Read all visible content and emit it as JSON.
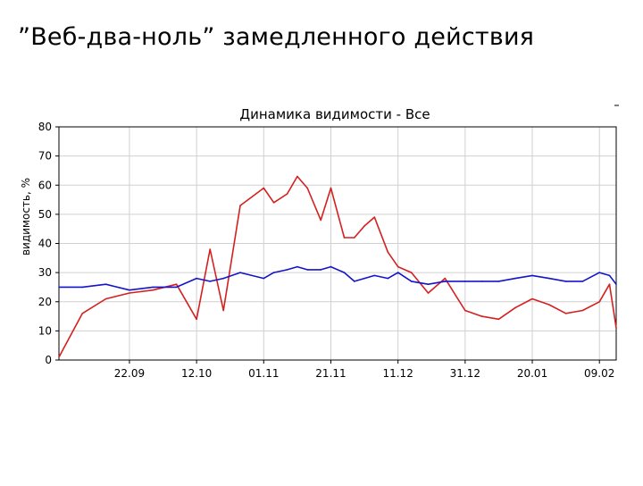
{
  "slide": {
    "title": "”Веб-два-ноль” замедленного действия"
  },
  "colors": {
    "series_red": "#d42020",
    "series_blue": "#1414c8",
    "grid": "#d0d0d0",
    "axis": "#000000"
  },
  "chart_data": {
    "type": "line",
    "title": "Динамика видимости - Все",
    "xlabel": "",
    "ylabel": "видимость, %",
    "ylim": [
      0,
      80
    ],
    "yticks": [
      "0",
      "10",
      "20",
      "30",
      "40",
      "50",
      "60",
      "70",
      "80"
    ],
    "xticks": [
      "22.09",
      "12.10",
      "01.11",
      "21.11",
      "11.12",
      "31.12",
      "20.01",
      "09.02"
    ],
    "grid": true,
    "legend": "none",
    "x": [
      "01.09",
      "08.09",
      "15.09",
      "22.09",
      "29.09",
      "06.10",
      "12.10",
      "16.10",
      "20.10",
      "25.10",
      "01.11",
      "04.11",
      "08.11",
      "11.11",
      "14.11",
      "18.11",
      "21.11",
      "25.11",
      "28.11",
      "01.12",
      "04.12",
      "08.12",
      "11.12",
      "15.12",
      "20.12",
      "25.12",
      "31.12",
      "05.01",
      "10.01",
      "15.01",
      "20.01",
      "25.01",
      "30.01",
      "04.02",
      "09.02",
      "12.02",
      "14.02"
    ],
    "series": [
      {
        "values": [
          1,
          16,
          21,
          23,
          24,
          26,
          14,
          38,
          17,
          53,
          59,
          54,
          57,
          63,
          59,
          48,
          59,
          42,
          42,
          46,
          49,
          37,
          32,
          30,
          23,
          28,
          17,
          15,
          14,
          18,
          21,
          19,
          16,
          17,
          20,
          26,
          11
        ]
      },
      {
        "values": [
          25,
          25,
          26,
          24,
          25,
          25,
          28,
          27,
          28,
          30,
          28,
          30,
          31,
          32,
          31,
          31,
          32,
          30,
          27,
          28,
          29,
          28,
          30,
          27,
          26,
          27,
          27,
          27,
          27,
          28,
          29,
          28,
          27,
          27,
          30,
          29,
          26
        ]
      }
    ]
  }
}
